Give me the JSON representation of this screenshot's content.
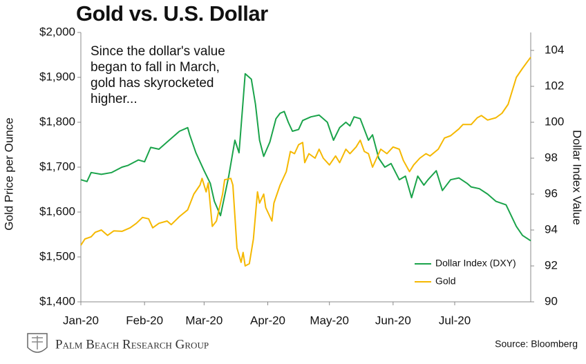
{
  "chart_data": {
    "type": "line",
    "title": "Gold vs. U.S. Dollar",
    "annotation": [
      "Since the dollar's value",
      "began to fall in March,",
      "gold has skyrocketed",
      "higher..."
    ],
    "y_label": "Gold Price per Ounce",
    "y2_label": "Dollar Index Value",
    "source": "Source: Bloomberg",
    "publisher": "Palm Beach Research Group",
    "legend": "lower right",
    "xlim": [
      0,
      219
    ],
    "xticks": [
      {
        "value": 0,
        "label": "Jan-20"
      },
      {
        "value": 31,
        "label": "Feb-20"
      },
      {
        "value": 60,
        "label": "Mar-20"
      },
      {
        "value": 91,
        "label": "Apr-20"
      },
      {
        "value": 121,
        "label": "May-20"
      },
      {
        "value": 152,
        "label": "Jun-20"
      },
      {
        "value": 182,
        "label": "Jul-20"
      }
    ],
    "ylim": [
      1400,
      2000
    ],
    "yticks": [
      {
        "value": 1400,
        "label": "$1,400"
      },
      {
        "value": 1500,
        "label": "$1,500"
      },
      {
        "value": 1600,
        "label": "$1,600"
      },
      {
        "value": 1700,
        "label": "$1,700"
      },
      {
        "value": 1800,
        "label": "$1,800"
      },
      {
        "value": 1900,
        "label": "$1,900"
      },
      {
        "value": 2000,
        "label": "$2,000"
      }
    ],
    "y2lim": [
      90,
      105
    ],
    "y2ticks": [
      90,
      92,
      94,
      96,
      98,
      100,
      102,
      104
    ],
    "series": [
      {
        "name": "Dollar Index (DXY)",
        "color": "#1aa34a",
        "axis": "y2",
        "x": [
          0,
          3,
          5,
          10,
          15,
          20,
          23,
          28,
          31,
          34,
          38,
          42,
          45,
          48,
          52,
          53,
          56,
          60,
          63,
          65,
          68,
          72,
          75,
          77,
          79,
          80,
          83,
          85,
          87,
          89,
          92,
          95,
          97,
          99,
          101,
          103,
          106,
          108,
          112,
          116,
          120,
          123,
          126,
          129,
          131,
          133,
          136,
          140,
          142,
          145,
          148,
          151,
          155,
          158,
          161,
          164,
          167,
          169,
          173,
          176,
          180,
          184,
          188,
          190,
          194,
          198,
          202,
          207,
          212,
          215,
          219
        ],
        "values": [
          96.8,
          96.7,
          97.2,
          97.1,
          97.2,
          97.5,
          97.6,
          97.9,
          97.8,
          98.6,
          98.5,
          98.9,
          99.2,
          99.5,
          99.7,
          99.3,
          98.3,
          97.3,
          96.6,
          95.6,
          94.8,
          97.0,
          99.0,
          98.3,
          101.2,
          102.7,
          102.4,
          101.0,
          99.0,
          98.1,
          98.9,
          100.2,
          100.5,
          100.6,
          100.0,
          99.5,
          99.6,
          100.1,
          100.3,
          100.4,
          100.0,
          99.0,
          99.7,
          100.0,
          99.8,
          100.3,
          100.2,
          99.0,
          99.3,
          98.0,
          97.5,
          97.7,
          96.8,
          97.0,
          95.8,
          97.0,
          96.5,
          96.8,
          97.3,
          96.2,
          96.8,
          96.9,
          96.6,
          96.4,
          96.3,
          96.0,
          95.6,
          95.4,
          94.2,
          93.7,
          93.4
        ]
      },
      {
        "name": "Gold",
        "color": "#f5b800",
        "axis": "y",
        "x": [
          0,
          2,
          5,
          7,
          10,
          13,
          16,
          20,
          24,
          27,
          30,
          33,
          35,
          38,
          42,
          44,
          48,
          52,
          55,
          58,
          59,
          61,
          62,
          64,
          66,
          69,
          70,
          73,
          74,
          76,
          78,
          79,
          80,
          82,
          84,
          86,
          87,
          89,
          90,
          93,
          94,
          97,
          100,
          102,
          104,
          106,
          108,
          109,
          111,
          114,
          116,
          118,
          121,
          124,
          126,
          129,
          131,
          134,
          136,
          138,
          140,
          142,
          146,
          149,
          152,
          155,
          157,
          160,
          162,
          165,
          168,
          170,
          174,
          177,
          180,
          184,
          186,
          190,
          193,
          195,
          198,
          202,
          205,
          208,
          212,
          215,
          219
        ],
        "values": [
          1526,
          1540,
          1545,
          1555,
          1560,
          1548,
          1558,
          1557,
          1565,
          1575,
          1588,
          1585,
          1565,
          1575,
          1580,
          1572,
          1590,
          1605,
          1640,
          1660,
          1675,
          1645,
          1665,
          1568,
          1580,
          1640,
          1672,
          1675,
          1660,
          1520,
          1488,
          1510,
          1480,
          1485,
          1540,
          1645,
          1620,
          1640,
          1610,
          1580,
          1620,
          1660,
          1690,
          1735,
          1730,
          1750,
          1755,
          1710,
          1730,
          1720,
          1740,
          1720,
          1705,
          1725,
          1710,
          1740,
          1730,
          1745,
          1760,
          1735,
          1730,
          1700,
          1740,
          1730,
          1745,
          1740,
          1715,
          1690,
          1705,
          1720,
          1730,
          1725,
          1740,
          1765,
          1770,
          1785,
          1795,
          1795,
          1810,
          1815,
          1805,
          1810,
          1820,
          1840,
          1900,
          1920,
          1945
        ]
      }
    ]
  }
}
